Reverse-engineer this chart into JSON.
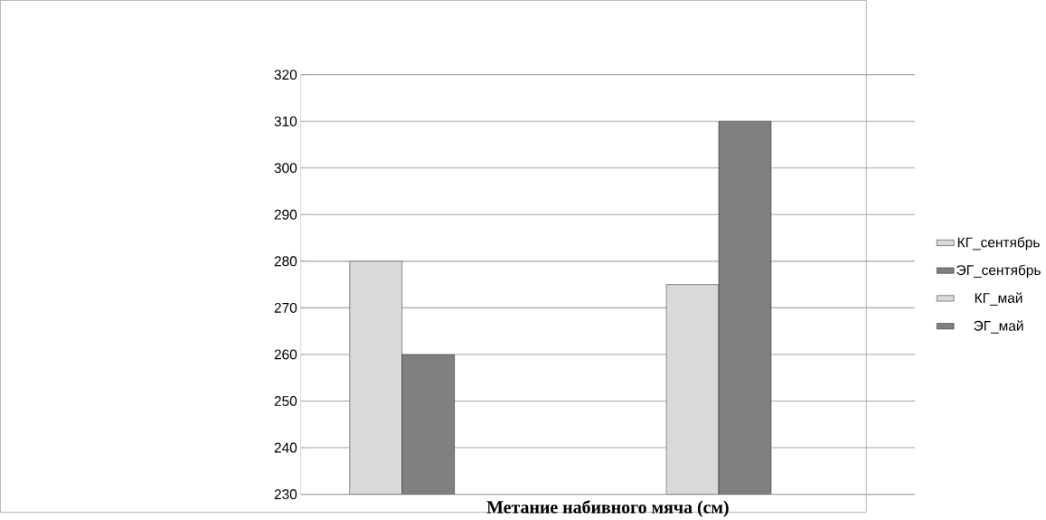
{
  "chart_data": {
    "type": "bar",
    "title": "Метание набивного мяча (см)",
    "categories": [
      null,
      null
    ],
    "series": [
      {
        "name": "КГ_сентябрь",
        "color": "#d9d9d9",
        "values": [
          280,
          null
        ]
      },
      {
        "name": "ЭГ_сентябрь",
        "color": "#808080",
        "values": [
          260,
          null
        ]
      },
      {
        "name": "КГ_май",
        "color": "#d9d9d9",
        "values": [
          null,
          275
        ]
      },
      {
        "name": "ЭГ_май",
        "color": "#808080",
        "values": [
          null,
          310
        ]
      }
    ],
    "ylim": [
      230,
      320
    ],
    "yticks": [
      230,
      240,
      250,
      260,
      270,
      280,
      290,
      300,
      310,
      320
    ],
    "grid": "y",
    "legend": "right"
  }
}
